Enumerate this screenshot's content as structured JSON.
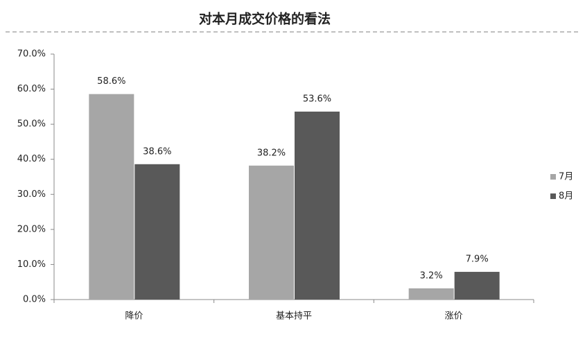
{
  "chart_data": {
    "type": "bar",
    "title": "对本月成交价格的看法",
    "categories": [
      "降价",
      "基本持平",
      "涨价"
    ],
    "series": [
      {
        "name": "7月",
        "color": "#a6a6a6",
        "values": [
          58.6,
          38.2,
          3.2
        ],
        "value_labels": [
          "58.6%",
          "38.2%",
          "3.2%"
        ]
      },
      {
        "name": "8月",
        "color": "#595959",
        "values": [
          38.6,
          53.6,
          7.9
        ],
        "value_labels": [
          "38.6%",
          "53.6%",
          "7.9%"
        ]
      }
    ],
    "ylim": [
      0,
      70
    ],
    "yticks": [
      {
        "value": 0,
        "label": "0.0%"
      },
      {
        "value": 10,
        "label": "10.0%"
      },
      {
        "value": 20,
        "label": "20.0%"
      },
      {
        "value": 30,
        "label": "30.0%"
      },
      {
        "value": 40,
        "label": "40.0%"
      },
      {
        "value": 50,
        "label": "50.0%"
      },
      {
        "value": 60,
        "label": "60.0%"
      },
      {
        "value": 70,
        "label": "70.0%"
      }
    ],
    "grid": false,
    "legend": "right"
  }
}
